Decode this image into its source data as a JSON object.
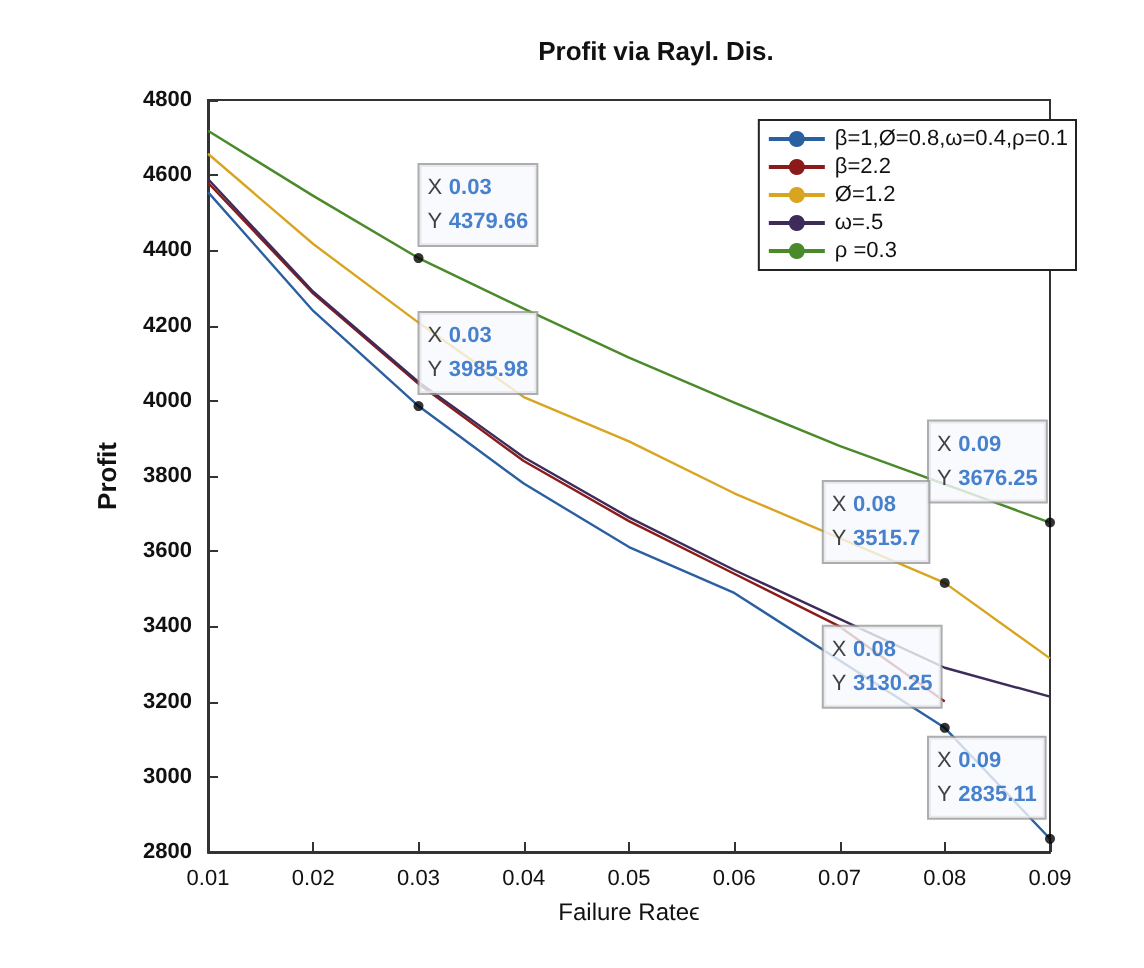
{
  "chart_data": {
    "type": "line",
    "title": "Profit via Rayl. Dis.",
    "xlabel": "Failure Rateϵ",
    "ylabel": "Profit",
    "x": [
      0.01,
      0.02,
      0.03,
      0.04,
      0.05,
      0.06,
      0.07,
      0.08,
      0.09
    ],
    "series": [
      {
        "name": "β=1,Ø=0.8,ω=0.4,ρ=0.1",
        "color": "#2a5fa0",
        "values": [
          4555,
          4239,
          3985.98,
          3780,
          3611,
          3489,
          null,
          3130.25,
          2835.11
        ]
      },
      {
        "name": "β=2.2",
        "color": "#8b1a1a",
        "values": [
          4580,
          4285,
          4045,
          3840,
          3680,
          3540,
          3400,
          3200,
          null
        ]
      },
      {
        "name": "Ø=1.2",
        "color": "#d9a521",
        "values": [
          4657,
          4417,
          4208,
          4010,
          3892,
          3754,
          null,
          3515.7,
          3315
        ]
      },
      {
        "name": "ω=.5",
        "color": "#3d2b5a",
        "values": [
          4590,
          4290,
          4050,
          3850,
          3690,
          3550,
          3420,
          3290,
          3213
        ]
      },
      {
        "name": "ρ =0.3",
        "color": "#4a8a2a",
        "values": [
          4718,
          4545,
          4379.66,
          4245,
          4115,
          3995,
          3880,
          null,
          3676.25
        ]
      }
    ],
    "annotations": [
      {
        "text": "X 0.03\nY 4379.66",
        "x": 0.03,
        "y": 4379.66
      },
      {
        "text": "X 0.03\nY 3985.98",
        "x": 0.03,
        "y": 3985.98
      },
      {
        "text": "X 0.09\nY 3676.25",
        "x": 0.09,
        "y": 3676.25
      },
      {
        "text": "X 0.08\nY 3515.7",
        "x": 0.08,
        "y": 3515.7
      },
      {
        "text": "X 0.08\nY 3130.25",
        "x": 0.08,
        "y": 3130.25
      },
      {
        "text": "X 0.09\nY 2835.11",
        "x": 0.09,
        "y": 2835.11
      }
    ],
    "xlim": [
      0.01,
      0.09
    ],
    "xticks": [
      0.01,
      0.02,
      0.03,
      0.04,
      0.05,
      0.06,
      0.07,
      0.08,
      0.09
    ],
    "ylim": [
      2800,
      4800
    ],
    "yticks": [
      2800,
      3000,
      3200,
      3400,
      3600,
      3800,
      4000,
      4200,
      4400,
      4600,
      4800
    ],
    "grid": false,
    "legend": "top right",
    "marker": "none",
    "line_style": "solid"
  }
}
